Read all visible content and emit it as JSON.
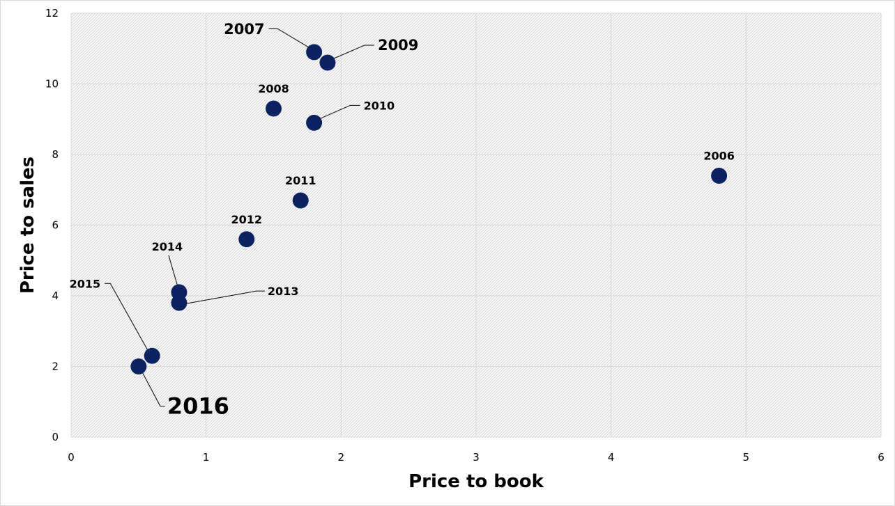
{
  "chart_data": {
    "type": "scatter",
    "title": "",
    "xlabel": "Price to book",
    "ylabel": "Price to sales",
    "xlim": [
      0,
      6
    ],
    "ylim": [
      0,
      12
    ],
    "xticks": [
      "0",
      "1",
      "2",
      "3",
      "4",
      "5",
      "6"
    ],
    "yticks": [
      "0",
      "2",
      "4",
      "6",
      "8",
      "10",
      "12"
    ],
    "grid": true,
    "legend": "none",
    "marker_color": "#0b2160",
    "points": [
      {
        "label": "2006",
        "x": 4.8,
        "y": 7.4
      },
      {
        "label": "2007",
        "x": 1.8,
        "y": 10.9
      },
      {
        "label": "2008",
        "x": 1.5,
        "y": 9.3
      },
      {
        "label": "2009",
        "x": 1.9,
        "y": 10.6
      },
      {
        "label": "2010",
        "x": 1.8,
        "y": 8.9
      },
      {
        "label": "2011",
        "x": 1.7,
        "y": 6.7
      },
      {
        "label": "2012",
        "x": 1.3,
        "y": 5.6
      },
      {
        "label": "2013",
        "x": 0.8,
        "y": 3.8
      },
      {
        "label": "2014",
        "x": 0.8,
        "y": 4.1
      },
      {
        "label": "2015",
        "x": 0.6,
        "y": 2.3
      },
      {
        "label": "2016",
        "x": 0.5,
        "y": 2.0
      }
    ]
  }
}
